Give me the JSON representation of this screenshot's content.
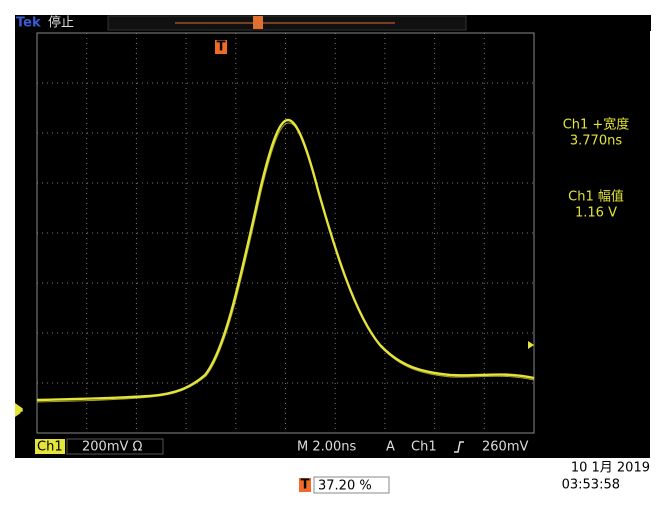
{
  "header": {
    "brand": "Tek",
    "status": "停止",
    "trigger_marker": "T"
  },
  "measurements": [
    {
      "label": "Ch1 +宽度",
      "value": "3.770ns"
    },
    {
      "label": "Ch1 幅值",
      "value": "1.16 V"
    }
  ],
  "channel_marker": "1",
  "status_bar": {
    "channel": "Ch1",
    "scale": "200mV Ω",
    "timebase": "M 2.00ns",
    "trigger_mode": "A",
    "trigger_source": "Ch1",
    "trigger_level": "260mV"
  },
  "trigger_position": {
    "marker": "T",
    "value": "37.20 %"
  },
  "date": "10 1月 2019",
  "time": "03:53:58"
}
